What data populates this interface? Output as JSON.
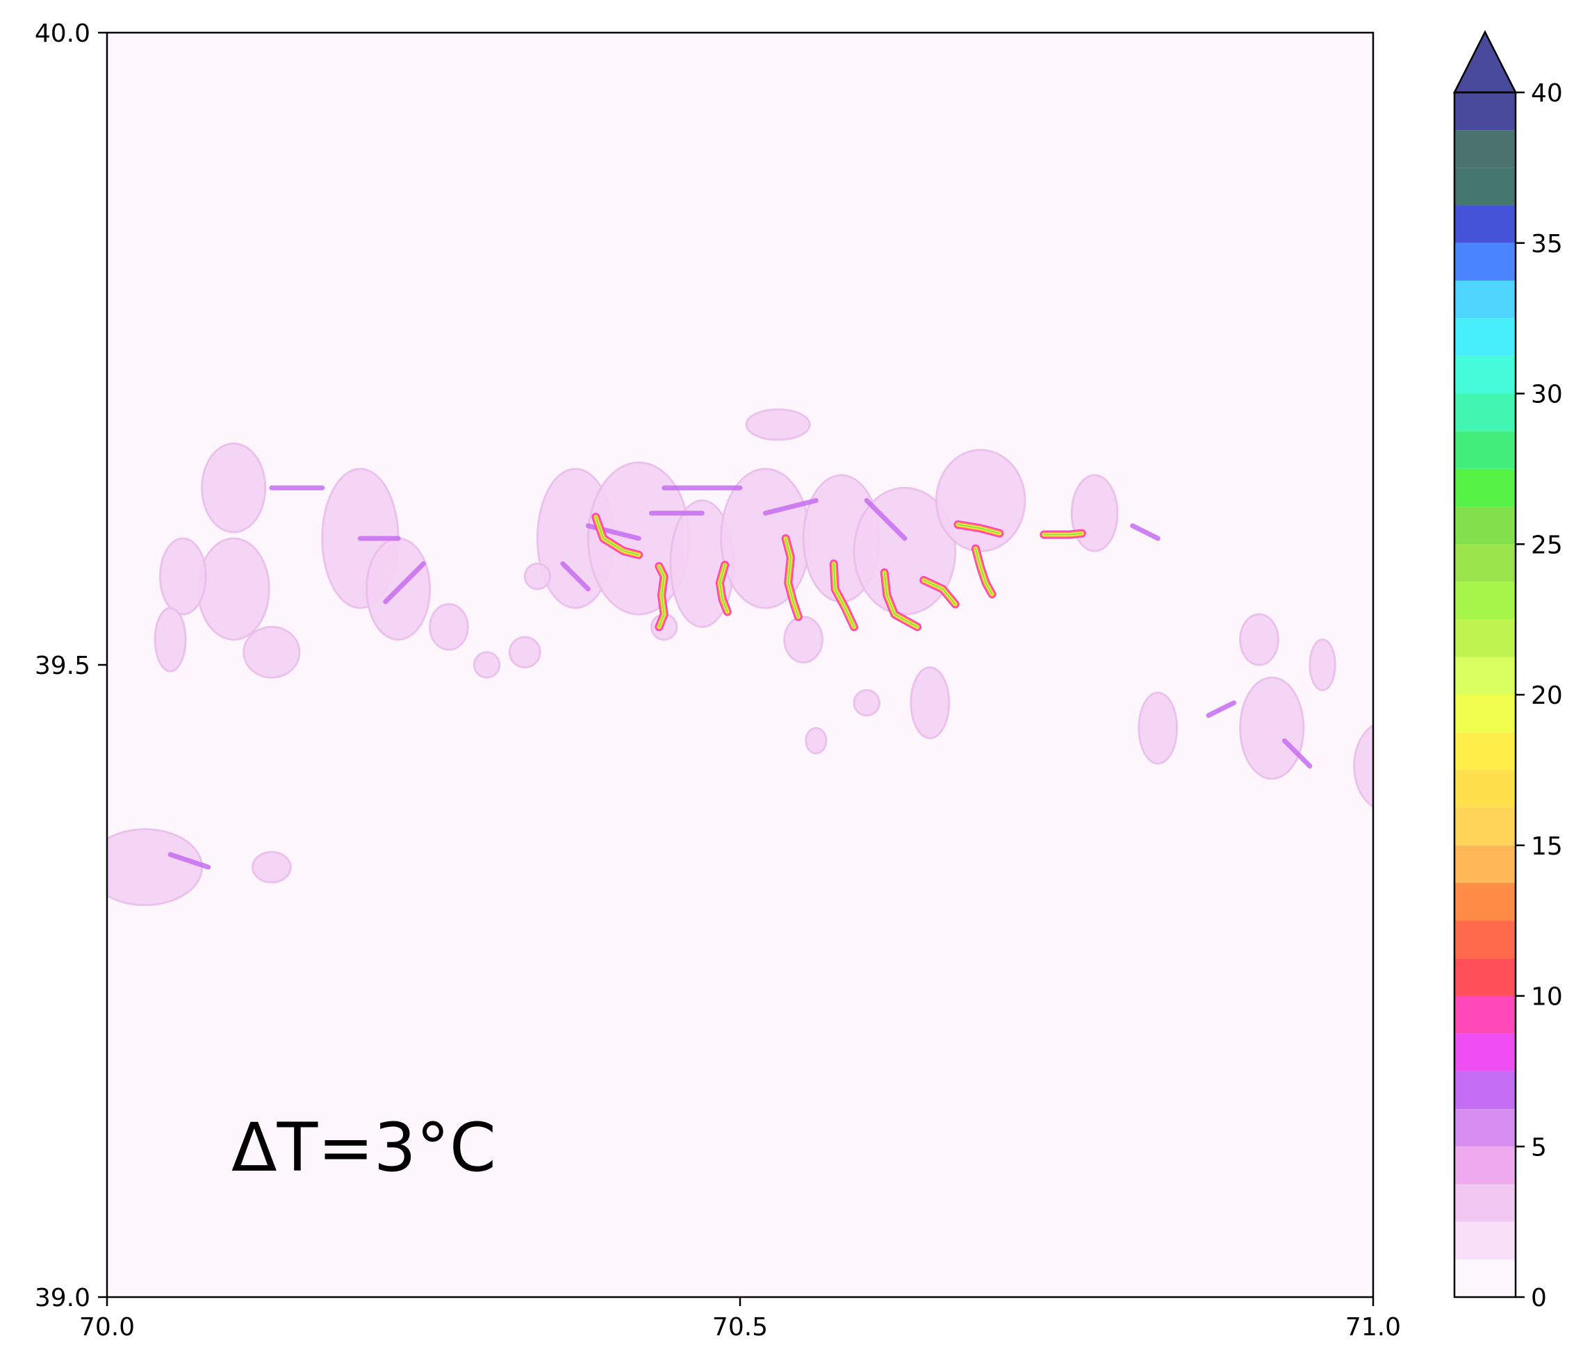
{
  "colors": {
    "background": "#ffffff",
    "map_background": "#fdf7fd",
    "patch": "#f5d2f5",
    "patch_edge": "#eabdea",
    "streak": "#c56cf0",
    "ridge_outer": "#ff3fbf",
    "ridge_mid": "#ff8c42",
    "ridge_inner": "#ffe84a",
    "ridge_core": "#7ee84a"
  },
  "map": {
    "x_ticks": [
      "70.0",
      "70.5",
      "71.0"
    ],
    "y_ticks": [
      "39.0",
      "39.5",
      "40.0"
    ],
    "x_range": [
      70.0,
      71.0
    ],
    "y_range": [
      39.0,
      40.0
    ],
    "annotation": "ΔT=3°C",
    "patches": [
      [
        70.1,
        39.64,
        0.025,
        0.035
      ],
      [
        70.1,
        39.56,
        0.028,
        0.04
      ],
      [
        70.13,
        39.51,
        0.022,
        0.02
      ],
      [
        70.06,
        39.57,
        0.018,
        0.03
      ],
      [
        70.05,
        39.52,
        0.012,
        0.025
      ],
      [
        70.2,
        39.6,
        0.03,
        0.055
      ],
      [
        70.23,
        39.56,
        0.025,
        0.04
      ],
      [
        70.27,
        39.53,
        0.015,
        0.018
      ],
      [
        70.37,
        39.6,
        0.03,
        0.055
      ],
      [
        70.42,
        39.6,
        0.04,
        0.06
      ],
      [
        70.47,
        39.58,
        0.025,
        0.05
      ],
      [
        70.52,
        39.6,
        0.035,
        0.055
      ],
      [
        70.55,
        39.52,
        0.015,
        0.018
      ],
      [
        70.58,
        39.6,
        0.03,
        0.05
      ],
      [
        70.63,
        39.59,
        0.04,
        0.05
      ],
      [
        70.53,
        39.69,
        0.025,
        0.012
      ],
      [
        70.69,
        39.63,
        0.035,
        0.04
      ],
      [
        70.78,
        39.62,
        0.018,
        0.03
      ],
      [
        70.65,
        39.47,
        0.015,
        0.028
      ],
      [
        70.6,
        39.47,
        0.01,
        0.01
      ],
      [
        70.56,
        39.44,
        0.008,
        0.01
      ],
      [
        70.83,
        39.45,
        0.015,
        0.028
      ],
      [
        70.92,
        39.45,
        0.025,
        0.04
      ],
      [
        71.01,
        39.42,
        0.025,
        0.035
      ],
      [
        70.91,
        39.52,
        0.015,
        0.02
      ],
      [
        70.3,
        39.5,
        0.01,
        0.01
      ],
      [
        70.33,
        39.51,
        0.012,
        0.012
      ],
      [
        70.44,
        39.53,
        0.01,
        0.01
      ],
      [
        70.34,
        39.57,
        0.01,
        0.01
      ],
      [
        70.03,
        39.34,
        0.045,
        0.03
      ],
      [
        70.13,
        39.34,
        0.015,
        0.012
      ],
      [
        70.96,
        39.5,
        0.01,
        0.02
      ]
    ],
    "streaks": [
      [
        [
          70.13,
          39.64
        ],
        [
          70.17,
          39.64
        ]
      ],
      [
        [
          70.2,
          39.6
        ],
        [
          70.23,
          39.6
        ]
      ],
      [
        [
          70.22,
          39.55
        ],
        [
          70.25,
          39.58
        ]
      ],
      [
        [
          70.38,
          39.61
        ],
        [
          70.42,
          39.6
        ]
      ],
      [
        [
          70.43,
          39.62
        ],
        [
          70.47,
          39.62
        ]
      ],
      [
        [
          70.52,
          39.62
        ],
        [
          70.56,
          39.63
        ]
      ],
      [
        [
          70.6,
          39.63
        ],
        [
          70.63,
          39.6
        ]
      ],
      [
        [
          70.38,
          39.56
        ],
        [
          70.36,
          39.58
        ]
      ],
      [
        [
          70.44,
          39.64
        ],
        [
          70.5,
          39.64
        ]
      ],
      [
        [
          70.87,
          39.46
        ],
        [
          70.89,
          39.47
        ]
      ],
      [
        [
          70.93,
          39.44
        ],
        [
          70.95,
          39.42
        ]
      ],
      [
        [
          70.05,
          39.35
        ],
        [
          70.08,
          39.34
        ]
      ],
      [
        [
          70.81,
          39.61
        ],
        [
          70.83,
          39.6
        ]
      ]
    ],
    "ridges": [
      [
        [
          70.386,
          39.617
        ],
        [
          70.392,
          39.6
        ],
        [
          70.408,
          39.59
        ],
        [
          70.42,
          39.587
        ]
      ],
      [
        [
          70.436,
          39.578
        ],
        [
          70.44,
          39.57
        ],
        [
          70.438,
          39.555
        ],
        [
          70.44,
          39.54
        ],
        [
          70.436,
          39.53
        ]
      ],
      [
        [
          70.488,
          39.579
        ],
        [
          70.484,
          39.565
        ],
        [
          70.486,
          39.552
        ],
        [
          70.49,
          39.542
        ]
      ],
      [
        [
          70.536,
          39.6
        ],
        [
          70.54,
          39.585
        ],
        [
          70.538,
          39.565
        ],
        [
          70.542,
          39.55
        ],
        [
          70.546,
          39.538
        ]
      ],
      [
        [
          70.574,
          39.58
        ],
        [
          70.575,
          39.56
        ],
        [
          70.583,
          39.545
        ],
        [
          70.59,
          39.53
        ]
      ],
      [
        [
          70.614,
          39.573
        ],
        [
          70.616,
          39.555
        ],
        [
          70.622,
          39.54
        ],
        [
          70.64,
          39.53
        ]
      ],
      [
        [
          70.672,
          39.611
        ],
        [
          70.69,
          39.608
        ],
        [
          70.705,
          39.604
        ]
      ],
      [
        [
          70.686,
          39.592
        ],
        [
          70.69,
          39.577
        ],
        [
          70.694,
          39.565
        ],
        [
          70.699,
          39.556
        ]
      ],
      [
        [
          70.74,
          39.603
        ],
        [
          70.76,
          39.603
        ],
        [
          70.77,
          39.604
        ]
      ],
      [
        [
          70.645,
          39.567
        ],
        [
          70.66,
          39.56
        ],
        [
          70.67,
          39.548
        ]
      ]
    ]
  },
  "colorbar": {
    "ticks": [
      "0",
      "5",
      "10",
      "15",
      "20",
      "25",
      "30",
      "35",
      "40"
    ],
    "range": [
      0,
      40
    ],
    "extend": "max",
    "levels": [
      {
        "from": 0,
        "to": 1.25,
        "color": "#fdf7fd"
      },
      {
        "from": 1.25,
        "to": 2.5,
        "color": "#f8e0f8"
      },
      {
        "from": 2.5,
        "to": 3.75,
        "color": "#f2c8f2"
      },
      {
        "from": 3.75,
        "to": 5,
        "color": "#efaaef"
      },
      {
        "from": 5,
        "to": 6.25,
        "color": "#d88ef0"
      },
      {
        "from": 6.25,
        "to": 7.5,
        "color": "#c56cf5"
      },
      {
        "from": 7.5,
        "to": 8.75,
        "color": "#ef4ff2"
      },
      {
        "from": 8.75,
        "to": 10,
        "color": "#ff49b9"
      },
      {
        "from": 10,
        "to": 11.25,
        "color": "#ff4f58"
      },
      {
        "from": 11.25,
        "to": 12.5,
        "color": "#ff6a4d"
      },
      {
        "from": 12.5,
        "to": 13.75,
        "color": "#ff8b47"
      },
      {
        "from": 13.75,
        "to": 15,
        "color": "#ffb757"
      },
      {
        "from": 15,
        "to": 16.25,
        "color": "#ffd458"
      },
      {
        "from": 16.25,
        "to": 17.5,
        "color": "#ffdf4c"
      },
      {
        "from": 17.5,
        "to": 18.75,
        "color": "#ffee4a"
      },
      {
        "from": 18.75,
        "to": 20,
        "color": "#f0ff4d"
      },
      {
        "from": 20,
        "to": 21.25,
        "color": "#d9ff60"
      },
      {
        "from": 21.25,
        "to": 22.5,
        "color": "#bff44f"
      },
      {
        "from": 22.5,
        "to": 23.75,
        "color": "#a5f54a"
      },
      {
        "from": 23.75,
        "to": 25,
        "color": "#9be34a"
      },
      {
        "from": 25,
        "to": 26.25,
        "color": "#82e04a"
      },
      {
        "from": 26.25,
        "to": 27.5,
        "color": "#55f346"
      },
      {
        "from": 27.5,
        "to": 28.75,
        "color": "#42ef7a"
      },
      {
        "from": 28.75,
        "to": 30,
        "color": "#42f5b0"
      },
      {
        "from": 30,
        "to": 31.25,
        "color": "#45fcda"
      },
      {
        "from": 31.25,
        "to": 32.5,
        "color": "#47eefb"
      },
      {
        "from": 32.5,
        "to": 33.75,
        "color": "#4ed5ff"
      },
      {
        "from": 33.75,
        "to": 35,
        "color": "#4c86ff"
      },
      {
        "from": 35,
        "to": 36.25,
        "color": "#4553d8"
      },
      {
        "from": 36.25,
        "to": 37.5,
        "color": "#46776f"
      },
      {
        "from": 37.5,
        "to": 38.75,
        "color": "#4a7370"
      },
      {
        "from": 38.75,
        "to": 40,
        "color": "#4a4a9c"
      }
    ],
    "over_color": "#4a4a9c"
  }
}
